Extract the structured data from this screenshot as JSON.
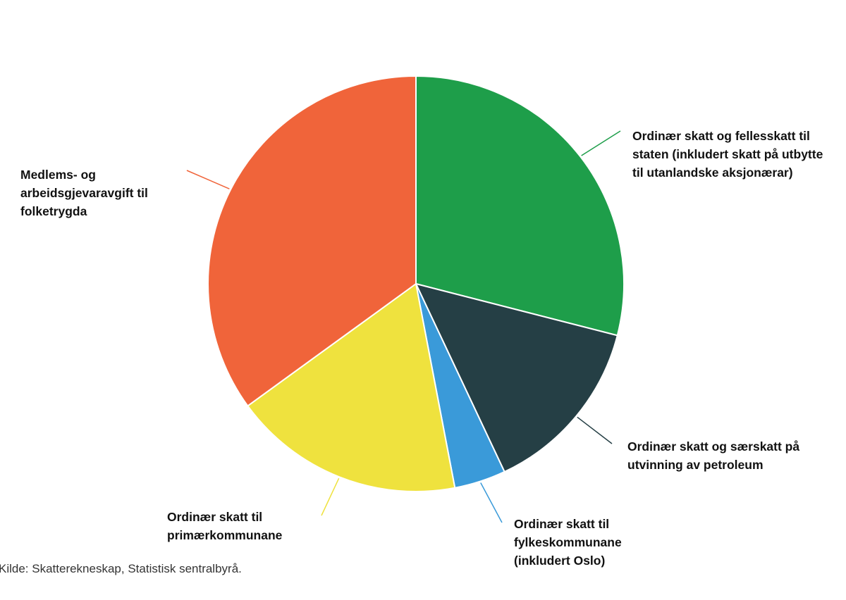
{
  "chart_data": {
    "type": "pie",
    "categories": [
      "Ordinær skatt og fellesskatt til staten (inkludert skatt på utbytte til utanlandske aksjonærar)",
      "Ordinær skatt og særskatt på utvinning av petroleum",
      "Ordinær skatt til fylkeskommunane (inkludert Oslo)",
      "Ordinær skatt til primærkommunane",
      "Medlems- og arbeidsgjevaravgift til folketrygda"
    ],
    "values": [
      29,
      14,
      4,
      18,
      35
    ],
    "colors": [
      "#1e9e4a",
      "#253f45",
      "#3a9ad9",
      "#efe23e",
      "#f0643a"
    ],
    "source": "Kilde: Skatterekneskap, Statistisk sentralbyrå."
  }
}
